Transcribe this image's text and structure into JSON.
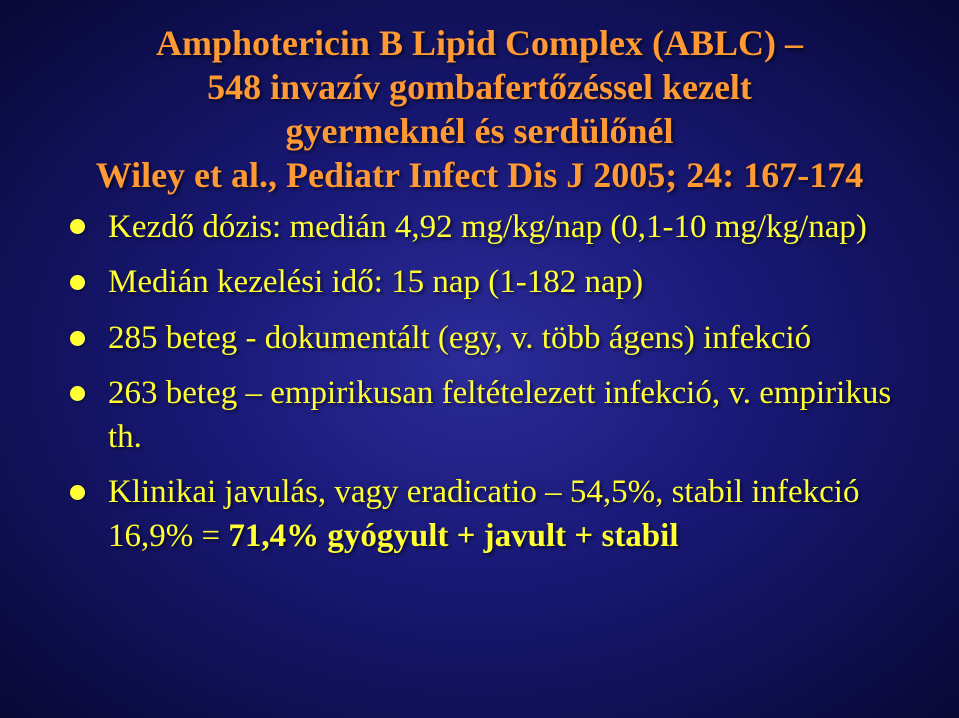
{
  "title": {
    "line1": "Amphotericin B Lipid Complex (ABLC) –",
    "line2": "548 invazív gombafertőzéssel kezelt",
    "line3": "gyermeknél és serdülőnél",
    "ref": "Wiley et al., Pediatr Infect Dis J 2005; 24: 167-174"
  },
  "bullets": [
    "Kezdő dózis: medián 4,92 mg/kg/nap (0,1-10 mg/kg/nap)",
    "Medián kezelési idő: 15 nap (1-182 nap)",
    "285 beteg  - dokumentált (egy, v. több ágens) infekció",
    "263 beteg – empirikusan feltételezett infekció, v. empirikus th."
  ],
  "bullet5_plain": "Klinikai javulás, vagy eradicatio – 54,5%, stabil infekció 16,9% = ",
  "bullet5_bold": "71,4% gyógyult + javult + stabil",
  "colors": {
    "title": "#ff9933",
    "body": "#ffff33",
    "bg_center": "#2c2c9a",
    "bg_edge": "#080835"
  },
  "fontsizes": {
    "title_pt": 36,
    "body_pt": 33
  }
}
